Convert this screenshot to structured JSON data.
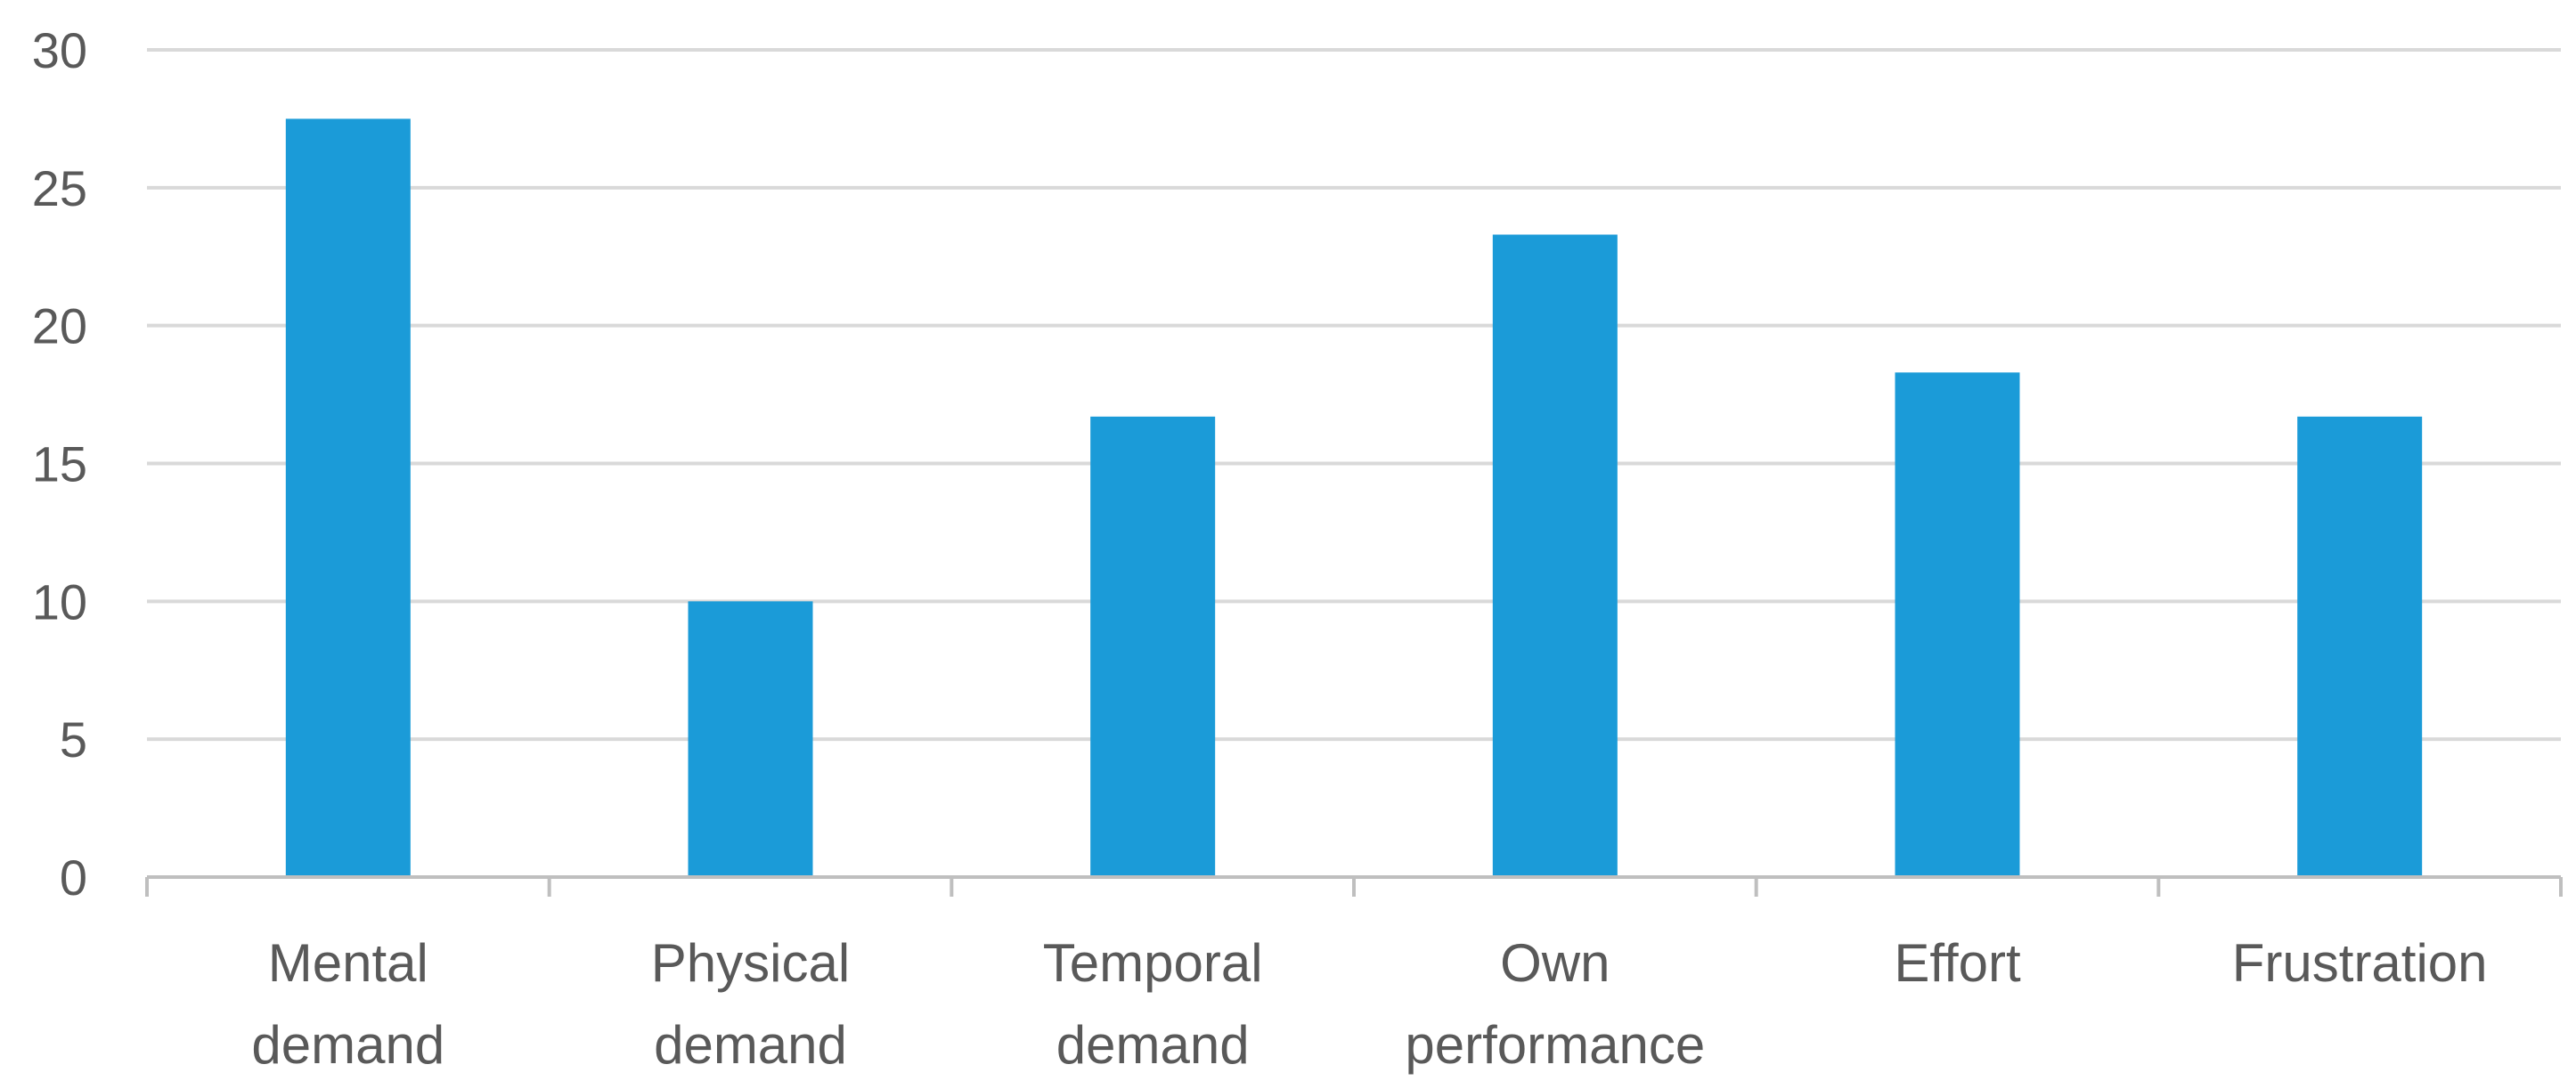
{
  "chart_data": {
    "type": "bar",
    "title": "",
    "xlabel": "",
    "ylabel": "",
    "categories": [
      [
        "Mental",
        "demand"
      ],
      [
        "Physical",
        "demand"
      ],
      [
        "Temporal",
        "demand"
      ],
      [
        "Own",
        "performance"
      ],
      [
        "Effort"
      ],
      [
        "Frustration"
      ]
    ],
    "values": [
      27.5,
      10,
      16.7,
      23.3,
      18.3,
      16.7
    ],
    "ylim": [
      0,
      30
    ],
    "yticks": [
      "0",
      "5",
      "10",
      "15",
      "20",
      "25",
      "30"
    ],
    "grid": true,
    "legend": "none",
    "bar_color": "#1B9BD8",
    "grid_color": "#D9D9D9",
    "axis_color": "#BFBFBF",
    "text_color": "#595959"
  }
}
